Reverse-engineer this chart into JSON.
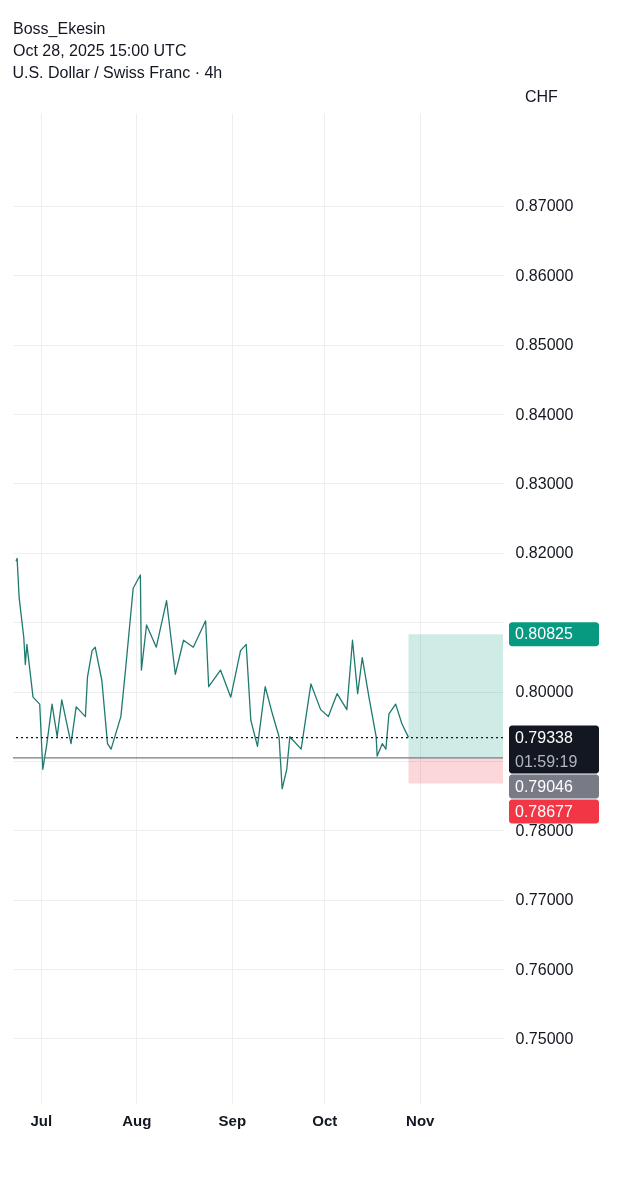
{
  "chart_data": {
    "type": "line",
    "title": "U.S. Dollar / Swiss Franc · 4h",
    "ylabel": "CHF",
    "annotations": [
      "Boss_Ekesin",
      "Oct 28, 2025 15:00 UTC",
      "01:59:19"
    ],
    "x": [
      "2025-06-23",
      "2025-06-23T08:00",
      "2025-06-24",
      "2025-06-25T12:00",
      "2025-06-26",
      "2025-06-26T12:00",
      "2025-06-28T12:00",
      "2025-06-30T16:00",
      "2025-07-01T16:00",
      "2025-07-03",
      "2025-07-04T16:00",
      "2025-07-06T08:00",
      "2025-07-07T20:00",
      "2025-07-10T20:00",
      "2025-07-12T12:00",
      "2025-07-15T12:00",
      "2025-07-16T04:00",
      "2025-07-17T16:00",
      "2025-07-18T16:00",
      "2025-07-20T20:00",
      "2025-07-22T16:00",
      "2025-07-23T20:00",
      "2025-07-27",
      "2025-07-28T12:00",
      "2025-07-31",
      "2025-08-02T08:00",
      "2025-08-02T16:00",
      "2025-08-04T08:00",
      "2025-08-07T12:00",
      "2025-08-10T20:00",
      "2025-08-13T16:00",
      "2025-08-16T08:00",
      "2025-08-19T12:00",
      "2025-08-23T12:00",
      "2025-08-24T12:00",
      "2025-08-28T08:00",
      "2025-08-31T16:00",
      "2025-09-03T20:00",
      "2025-09-05T16:00",
      "2025-09-07T04:00",
      "2025-09-09T08:00",
      "2025-09-11T20:00",
      "2025-09-14T04:00",
      "2025-09-16T08:00",
      "2025-09-17T08:00",
      "2025-09-18T20:00",
      "2025-09-19T20:00",
      "2025-09-23T12:00",
      "2025-09-26T16:00",
      "2025-09-29T20:00",
      "2025-10-02T08:00",
      "2025-10-05T04:00",
      "2025-10-08T08:00",
      "2025-10-10T04:00",
      "2025-10-11T20:00",
      "2025-10-13T08:00",
      "2025-10-15T12:00",
      "2025-10-17T20:00",
      "2025-10-18T04:00",
      "2025-10-19T20:00",
      "2025-10-21",
      "2025-10-22",
      "2025-10-24T04:00",
      "2025-10-26T04:00",
      "2025-10-28T08:00"
    ],
    "series": [
      {
        "color": "#1f7a70",
        "values": [
          0.8188,
          0.8192,
          0.8135,
          0.8078,
          0.8039,
          0.8068,
          0.7992,
          0.7982,
          0.7888,
          0.7925,
          0.7982,
          0.7935,
          0.7988,
          0.7925,
          0.7978,
          0.7964,
          0.8021,
          0.8059,
          0.8064,
          0.8016,
          0.7925,
          0.7917,
          0.7964,
          0.8031,
          0.8149,
          0.8168,
          0.8031,
          0.8096,
          0.8064,
          0.8131,
          0.8025,
          0.8074,
          0.8064,
          0.8102,
          0.8007,
          0.8031,
          0.7992,
          0.8059,
          0.8068,
          0.7959,
          0.7921,
          0.8007,
          0.7968,
          0.7935,
          0.786,
          0.7888,
          0.7935,
          0.7917,
          0.8011,
          0.7974,
          0.7964,
          0.7997,
          0.7974,
          0.8074,
          0.7997,
          0.8049,
          0.7992,
          0.7935,
          0.7907,
          0.7925,
          0.7917,
          0.7968,
          0.7982,
          0.7954,
          0.7934
        ]
      }
    ],
    "xlim": [
      "2025-06-22",
      "2025-11-28"
    ],
    "xticks": [
      {
        "value": "2025-07-01",
        "label": "Jul"
      },
      {
        "value": "2025-08-01",
        "label": "Aug"
      },
      {
        "value": "2025-09-01",
        "label": "Sep"
      },
      {
        "value": "2025-10-01",
        "label": "Oct"
      },
      {
        "value": "2025-11-01",
        "label": "Nov"
      }
    ],
    "ylim": [
      0.7407,
      0.8834
    ],
    "yticks": [
      {
        "value": 0.75,
        "label": "0.75000"
      },
      {
        "value": 0.76,
        "label": "0.76000"
      },
      {
        "value": 0.77,
        "label": "0.77000"
      },
      {
        "value": 0.78,
        "label": "0.78000"
      },
      {
        "value": 0.79,
        "label": null
      },
      {
        "value": 0.8,
        "label": "0.80000"
      },
      {
        "value": 0.81,
        "label": null
      },
      {
        "value": 0.82,
        "label": "0.82000"
      },
      {
        "value": 0.83,
        "label": "0.83000"
      },
      {
        "value": 0.84,
        "label": "0.84000"
      },
      {
        "value": 0.85,
        "label": "0.85000"
      },
      {
        "value": 0.86,
        "label": "0.86000"
      },
      {
        "value": 0.87,
        "label": "0.87000"
      }
    ],
    "ref_lines": [
      {
        "axis": "y",
        "value": 0.79338,
        "label": "0.79338",
        "color": "#131722",
        "line_style": "dotted"
      },
      {
        "axis": "y",
        "value": 0.79046,
        "label": "0.79046",
        "color": "#787b86",
        "line_style": "solid"
      }
    ],
    "bands": [
      {
        "axis": "y",
        "from": 0.79046,
        "to": 0.80825,
        "label": "0.80825",
        "color": "#089981"
      },
      {
        "axis": "y",
        "from": 0.78677,
        "to": 0.79046,
        "label": "0.78677",
        "color": "#f23645"
      }
    ],
    "grid": true,
    "line_style": "solid",
    "marker": "none"
  }
}
